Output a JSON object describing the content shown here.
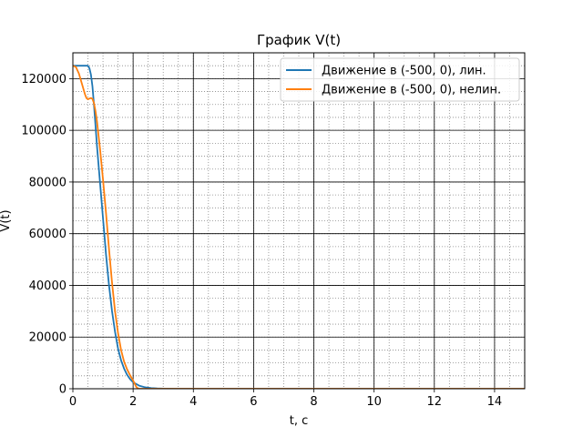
{
  "chart_data": {
    "type": "line",
    "title": "График V(t)",
    "xlabel": "t, c",
    "ylabel": "V(t)",
    "xlim": [
      0,
      15
    ],
    "ylim": [
      0,
      130000
    ],
    "x_ticks": [
      0,
      2,
      4,
      6,
      8,
      10,
      12,
      14
    ],
    "y_ticks": [
      0,
      20000,
      40000,
      60000,
      80000,
      100000,
      120000
    ],
    "x_minor_step": 0.5,
    "y_minor_step": 5000,
    "grid": true,
    "legend_position": "top-right",
    "series": [
      {
        "name": "Движение в (-500, 0), лин.",
        "color": "#1f77b4",
        "points": [
          [
            0,
            125000
          ],
          [
            0.3,
            125000
          ],
          [
            0.5,
            125000
          ],
          [
            0.55,
            124000
          ],
          [
            0.6,
            121500
          ],
          [
            0.65,
            117000
          ],
          [
            0.7,
            110000
          ],
          [
            0.75,
            102000
          ],
          [
            0.8,
            94000
          ],
          [
            0.9,
            80000
          ],
          [
            1.0,
            66000
          ],
          [
            1.1,
            52000
          ],
          [
            1.2,
            40000
          ],
          [
            1.3,
            30000
          ],
          [
            1.4,
            22000
          ],
          [
            1.5,
            15500
          ],
          [
            1.6,
            11000
          ],
          [
            1.7,
            7800
          ],
          [
            1.8,
            5400
          ],
          [
            1.9,
            3700
          ],
          [
            2.0,
            2500
          ],
          [
            2.2,
            1200
          ],
          [
            2.4,
            550
          ],
          [
            2.6,
            250
          ],
          [
            2.8,
            110
          ],
          [
            3.0,
            50
          ],
          [
            3.5,
            8
          ],
          [
            4.0,
            1
          ],
          [
            6,
            0
          ],
          [
            15,
            0
          ]
        ]
      },
      {
        "name": "Движение в (-500, 0), нелин.",
        "color": "#ff7f0e",
        "points": [
          [
            0,
            125000
          ],
          [
            0.1,
            124500
          ],
          [
            0.2,
            122000
          ],
          [
            0.3,
            118000
          ],
          [
            0.4,
            114000
          ],
          [
            0.45,
            112500
          ],
          [
            0.5,
            112000
          ],
          [
            0.55,
            112300
          ],
          [
            0.6,
            112500
          ],
          [
            0.65,
            112200
          ],
          [
            0.7,
            110500
          ],
          [
            0.75,
            107500
          ],
          [
            0.8,
            103500
          ],
          [
            0.9,
            93000
          ],
          [
            1.0,
            81000
          ],
          [
            1.1,
            68000
          ],
          [
            1.2,
            54000
          ],
          [
            1.3,
            41000
          ],
          [
            1.4,
            30000
          ],
          [
            1.5,
            21500
          ],
          [
            1.6,
            15000
          ],
          [
            1.7,
            10500
          ],
          [
            1.8,
            7500
          ],
          [
            1.9,
            5200
          ],
          [
            2.0,
            3200
          ],
          [
            2.05,
            2000
          ],
          [
            2.1,
            800
          ],
          [
            2.15,
            200
          ],
          [
            2.2,
            0
          ],
          [
            15,
            0
          ]
        ]
      }
    ]
  }
}
